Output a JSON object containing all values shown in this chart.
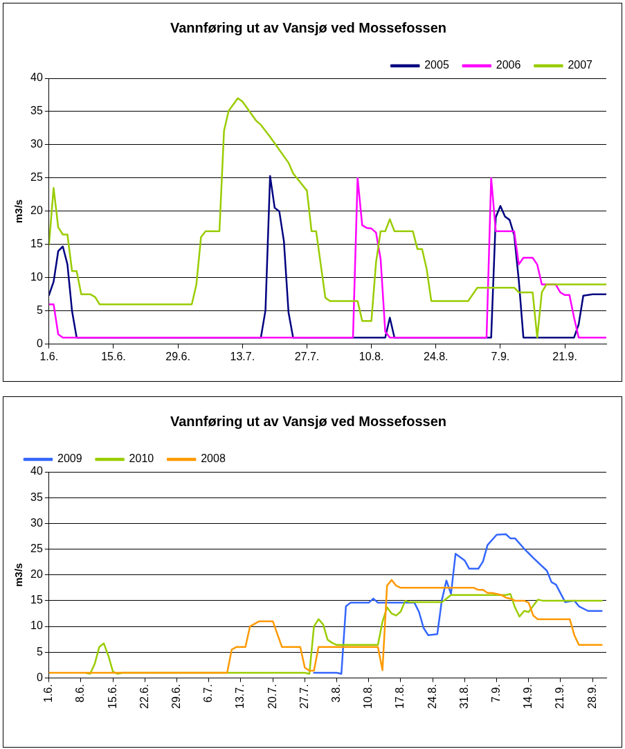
{
  "chart_data": [
    {
      "type": "line",
      "title": "Vannføring ut av Vansjø ved Mossefossen",
      "ylabel": "m3/s",
      "xlim": [
        "--06-01",
        "--09-30"
      ],
      "xticks": [
        {
          "value": "--06-01",
          "label": "1.6."
        },
        {
          "value": "--06-15",
          "label": "15.6."
        },
        {
          "value": "--06-29",
          "label": "29.6."
        },
        {
          "value": "--07-13",
          "label": "13.7."
        },
        {
          "value": "--07-27",
          "label": "27.7."
        },
        {
          "value": "--08-10",
          "label": "10.8."
        },
        {
          "value": "--08-24",
          "label": "24.8."
        },
        {
          "value": "--09-07",
          "label": "7.9."
        },
        {
          "value": "--09-21",
          "label": "21.9."
        }
      ],
      "ylim": [
        0,
        40
      ],
      "yticks": [
        0,
        5,
        10,
        15,
        20,
        25,
        30,
        35,
        40
      ],
      "grid": "y",
      "legend": "top right",
      "marker": "none",
      "line_style": "solid",
      "series": [
        {
          "name": "2005",
          "color": "#000080",
          "x": [
            "--06-01",
            "--06-02",
            "--06-03",
            "--06-04",
            "--06-05",
            "--06-06",
            "--06-07",
            "--07-17",
            "--07-18",
            "--07-19",
            "--07-20",
            "--07-21",
            "--07-22",
            "--07-23",
            "--07-24",
            "--08-13",
            "--08-14",
            "--08-15",
            "--09-05",
            "--09-06",
            "--09-07",
            "--09-08",
            "--09-09",
            "--09-10",
            "--09-11",
            "--09-12",
            "--09-23",
            "--09-24",
            "--09-25",
            "--09-27",
            "--09-30"
          ],
          "values": [
            7.4,
            9.4,
            14,
            14.7,
            12,
            5,
            1,
            1,
            5.1,
            25.3,
            20.5,
            20,
            15.5,
            4.8,
            1,
            1,
            4,
            1,
            1,
            19.1,
            20.8,
            19.2,
            18.7,
            16.4,
            9.6,
            1,
            1,
            3,
            7.3,
            7.5,
            7.5
          ]
        },
        {
          "name": "2006",
          "color": "#ff00ff",
          "x": [
            "--06-01",
            "--06-02",
            "--06-03",
            "--06-04",
            "--08-06",
            "--08-07",
            "--08-08",
            "--08-09",
            "--08-10",
            "--08-11",
            "--08-12",
            "--08-13",
            "--08-14",
            "--09-04",
            "--09-05",
            "--09-06",
            "--09-10",
            "--09-11",
            "--09-12",
            "--09-14",
            "--09-15",
            "--09-16",
            "--09-19",
            "--09-20",
            "--09-21",
            "--09-22",
            "--09-23",
            "--09-24",
            "--09-30"
          ],
          "values": [
            6,
            6,
            1.5,
            1,
            1,
            25,
            17.9,
            17.5,
            17.4,
            16.8,
            12.8,
            1.9,
            1,
            1,
            25,
            17,
            17,
            12,
            13,
            13,
            12,
            9,
            9,
            7.8,
            7.4,
            7.4,
            4,
            1,
            1
          ]
        },
        {
          "name": "2007",
          "color": "#99cc00",
          "x": [
            "--06-01",
            "--06-02",
            "--06-03",
            "--06-04",
            "--06-05",
            "--06-06",
            "--06-07",
            "--06-08",
            "--06-10",
            "--06-11",
            "--06-12",
            "--07-02",
            "--07-03",
            "--07-04",
            "--07-05",
            "--07-08",
            "--07-09",
            "--07-10",
            "--07-12",
            "--07-13",
            "--07-16",
            "--07-17",
            "--07-19",
            "--07-23",
            "--07-24",
            "--07-27",
            "--07-28",
            "--07-29",
            "--07-31",
            "--08-01",
            "--08-07",
            "--08-08",
            "--08-10",
            "--08-11",
            "--08-12",
            "--08-13",
            "--08-14",
            "--08-15",
            "--08-19",
            "--08-20",
            "--08-21",
            "--08-22",
            "--08-23",
            "--08-31",
            "--09-02",
            "--09-10",
            "--09-11",
            "--09-14",
            "--09-15",
            "--09-16",
            "--09-17",
            "--09-30"
          ],
          "values": [
            15,
            23.5,
            17.6,
            16.5,
            16.5,
            11,
            11,
            7.5,
            7.5,
            7.1,
            6,
            6,
            9,
            16.1,
            17,
            17,
            32.1,
            35.1,
            37,
            36.5,
            33.6,
            33,
            31.2,
            27.3,
            25.7,
            23.1,
            17,
            17,
            7,
            6.5,
            6.5,
            3.5,
            3.5,
            12.3,
            17,
            17,
            18.8,
            17,
            17,
            14.3,
            14.3,
            11.3,
            6.5,
            6.5,
            8.5,
            8.5,
            7.8,
            7.8,
            1,
            7.8,
            9,
            9
          ]
        }
      ]
    },
    {
      "type": "line",
      "title": "Vannføring ut av Vansjø ved Mossefossen",
      "ylabel": "m3/s",
      "xlim": [
        "--06-01",
        "--10-01"
      ],
      "xticks": [
        {
          "value": "--06-01",
          "label": "1.6."
        },
        {
          "value": "--06-08",
          "label": "8.6."
        },
        {
          "value": "--06-15",
          "label": "15.6."
        },
        {
          "value": "--06-22",
          "label": "22.6."
        },
        {
          "value": "--06-29",
          "label": "29.6."
        },
        {
          "value": "--07-06",
          "label": "6.7."
        },
        {
          "value": "--07-13",
          "label": "13.7."
        },
        {
          "value": "--07-20",
          "label": "20.7."
        },
        {
          "value": "--07-27",
          "label": "27.7."
        },
        {
          "value": "--08-03",
          "label": "3.8."
        },
        {
          "value": "--08-10",
          "label": "10.8."
        },
        {
          "value": "--08-17",
          "label": "17.8."
        },
        {
          "value": "--08-24",
          "label": "24.8."
        },
        {
          "value": "--08-31",
          "label": "31.8."
        },
        {
          "value": "--09-07",
          "label": "7.9."
        },
        {
          "value": "--09-14",
          "label": "14.9."
        },
        {
          "value": "--09-21",
          "label": "21.9."
        },
        {
          "value": "--09-28",
          "label": "28.9."
        }
      ],
      "ylim": [
        0,
        40
      ],
      "yticks": [
        0,
        5,
        10,
        15,
        20,
        25,
        30,
        35,
        40
      ],
      "grid": "y",
      "legend": "top left",
      "marker": "none",
      "line_style": "solid",
      "series": [
        {
          "name": "2009",
          "color": "#3366ff",
          "x": [
            "--07-29",
            "--08-03",
            "--08-04",
            "--08-05",
            "--08-06",
            "--08-10",
            "--08-11",
            "--08-12",
            "--08-20",
            "--08-21",
            "--08-22",
            "--08-23",
            "--08-25",
            "--08-26",
            "--08-27",
            "--08-28",
            "--08-29",
            "--08-31",
            "--09-01",
            "--09-03",
            "--09-04",
            "--09-05",
            "--09-07",
            "--09-09",
            "--09-10",
            "--09-11",
            "--09-13",
            "--09-15",
            "--09-18",
            "--09-19",
            "--09-20",
            "--09-22",
            "--09-24",
            "--09-25",
            "--09-27",
            "--09-30"
          ],
          "values": [
            1,
            1,
            0.8,
            13.9,
            14.6,
            14.6,
            15.4,
            14.6,
            14.6,
            12.8,
            9.7,
            8.3,
            8.5,
            15.1,
            18.9,
            16.3,
            24.1,
            22.8,
            21.2,
            21.2,
            22.6,
            25.8,
            27.8,
            27.9,
            27.1,
            27.1,
            25.1,
            23.3,
            20.8,
            18.6,
            18.1,
            14.7,
            15,
            13.9,
            13,
            13
          ]
        },
        {
          "name": "2010",
          "color": "#99cc00",
          "x": [
            "--06-09",
            "--06-10",
            "--06-11",
            "--06-12",
            "--06-13",
            "--06-14",
            "--06-15",
            "--06-16",
            "--06-17",
            "--07-27",
            "--07-28",
            "--07-29",
            "--07-30",
            "--07-31",
            "--08-01",
            "--08-02",
            "--08-03",
            "--08-12",
            "--08-13",
            "--08-14",
            "--08-15",
            "--08-16",
            "--08-17",
            "--08-18",
            "--08-19",
            "--08-26",
            "--08-28",
            "--09-09",
            "--09-10",
            "--09-11",
            "--09-12",
            "--09-13",
            "--09-14",
            "--09-16",
            "--09-17",
            "--09-30"
          ],
          "values": [
            1,
            0.8,
            2.7,
            6,
            6.7,
            4.3,
            1.2,
            0.8,
            1,
            1,
            0.8,
            10,
            11.4,
            10.4,
            7.4,
            6.8,
            6.4,
            6.4,
            10.9,
            13.7,
            12.5,
            12.1,
            12.9,
            15,
            14.7,
            14.7,
            16.1,
            16.1,
            16.3,
            13.7,
            11.9,
            13,
            12.8,
            15.2,
            15,
            15
          ]
        },
        {
          "name": "2008",
          "color": "#ff9900",
          "x": [
            "--06-01",
            "--07-10",
            "--07-11",
            "--07-12",
            "--07-14",
            "--07-15",
            "--07-17",
            "--07-20",
            "--07-22",
            "--07-26",
            "--07-27",
            "--07-28",
            "--07-29",
            "--07-30",
            "--08-12",
            "--08-13",
            "--08-14",
            "--08-15",
            "--08-16",
            "--08-17",
            "--09-02",
            "--09-03",
            "--09-04",
            "--09-05",
            "--09-06",
            "--09-08",
            "--09-09",
            "--09-10",
            "--09-11",
            "--09-13",
            "--09-14",
            "--09-15",
            "--09-16",
            "--09-23",
            "--09-24",
            "--09-25",
            "--09-30"
          ],
          "values": [
            1,
            1,
            5.5,
            6,
            6,
            10,
            11,
            11,
            6,
            6,
            2,
            1.4,
            1.4,
            6,
            6,
            1.5,
            17.9,
            19,
            17.9,
            17.5,
            17.5,
            17.1,
            17.1,
            16.5,
            16.5,
            16.1,
            15.6,
            15.4,
            15,
            15,
            14.6,
            12.1,
            11.4,
            11.4,
            8.3,
            6.4,
            6.4
          ]
        }
      ]
    }
  ]
}
